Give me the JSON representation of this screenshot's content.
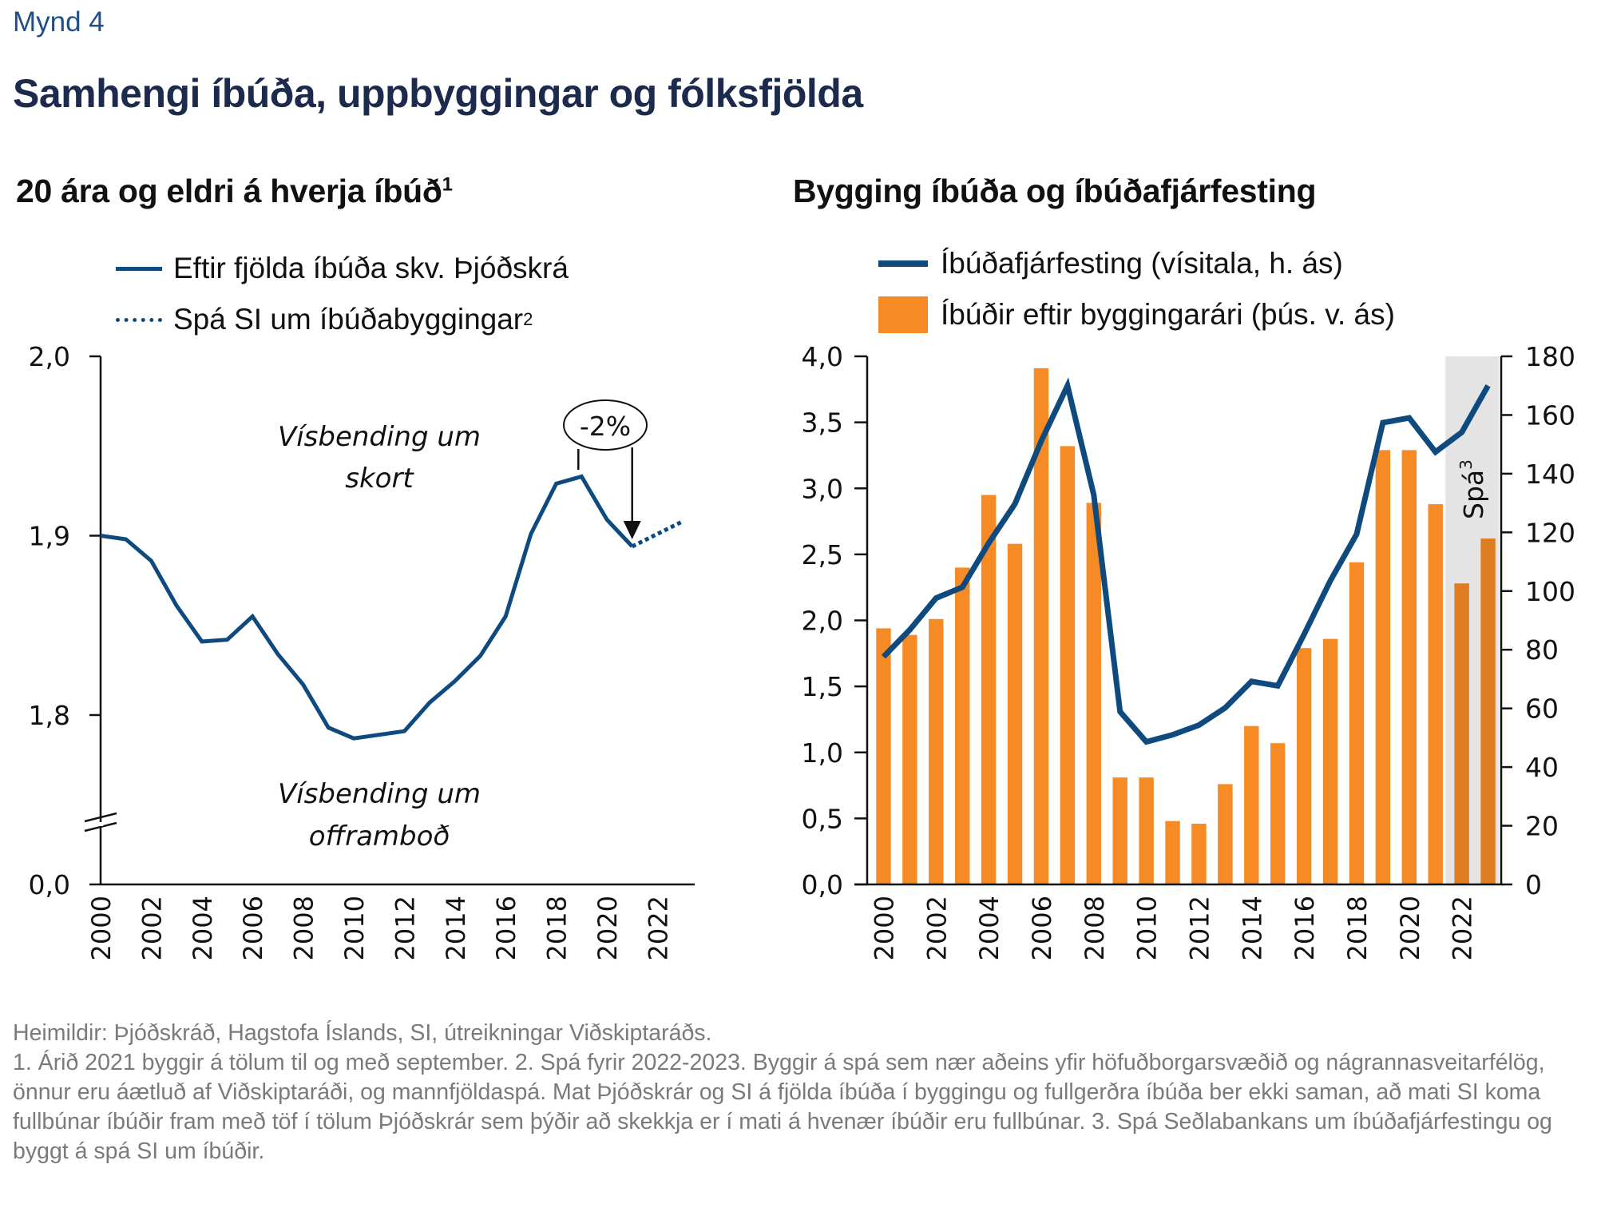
{
  "figure_number": "Mynd 4",
  "title": "Samhengi íbúða, uppbyggingar og fólksfjölda",
  "left_panel": {
    "subtitle": "20 ára og eldri á hverja íbúð",
    "subtitle_sup": "1",
    "legend": [
      {
        "label": "Eftir fjölda íbúða skv. Þjóðskrá",
        "sup": ""
      },
      {
        "label": "Spá SI um íbúðabyggingar",
        "sup": "2"
      }
    ],
    "annotation_top": [
      "Vísbending um",
      "skort"
    ],
    "annotation_bottom": [
      "Vísbending um",
      "offramboð"
    ],
    "callout": "-2%"
  },
  "right_panel": {
    "subtitle": "Bygging íbúða og íbúðafjárfesting",
    "legend": [
      {
        "label": "Íbúðafjárfesting (vísitala, h. ás)"
      },
      {
        "label": "Íbúðir eftir byggingarári (þús. v. ás)"
      }
    ],
    "forecast_label": "Spá",
    "forecast_sup": "3"
  },
  "colors": {
    "line": "#0e4a7e",
    "bar": "#f68b26",
    "bar_forecast": "#e07d22",
    "forecast_shade": "#e4e4e4",
    "figno": "#1e4f8a",
    "title": "#1c2a4d",
    "footer": "#7a7a7a"
  },
  "chart_data": [
    {
      "type": "line",
      "title": "20 ára og eldri á hverja íbúð",
      "xlabel": "",
      "ylabel": "",
      "x_ticks": [
        "2000",
        "2002",
        "2004",
        "2006",
        "2008",
        "2010",
        "2012",
        "2014",
        "2016",
        "2018",
        "2020",
        "2022"
      ],
      "y_ticks": [
        "0,0",
        "1,8",
        "1,9",
        "2,0"
      ],
      "ylim": [
        1.75,
        2.0
      ],
      "y_axis_break": true,
      "grid": false,
      "legend_position": "top-left",
      "series": [
        {
          "name": "Eftir fjölda íbúða skv. Þjóðskrá",
          "style": "solid",
          "x": [
            2000,
            2001,
            2002,
            2003,
            2004,
            2005,
            2006,
            2007,
            2008,
            2009,
            2010,
            2011,
            2012,
            2013,
            2014,
            2015,
            2016,
            2017,
            2018,
            2019,
            2020,
            2021
          ],
          "values": [
            1.9,
            1.898,
            1.886,
            1.861,
            1.841,
            1.842,
            1.855,
            1.834,
            1.817,
            1.793,
            1.787,
            1.789,
            1.791,
            1.807,
            1.819,
            1.833,
            1.855,
            1.901,
            1.929,
            1.933,
            1.909,
            1.894
          ]
        },
        {
          "name": "Spá SI um íbúðabyggingar",
          "style": "dotted",
          "x": [
            2021,
            2023
          ],
          "values": [
            1.894,
            1.908
          ]
        }
      ],
      "annotations": [
        {
          "text": "Vísbending um skort",
          "position": "upper-middle"
        },
        {
          "text": "Vísbending um offramboð",
          "position": "lower-middle"
        },
        {
          "text": "-2%",
          "from_year": 2019,
          "to_year": 2021
        }
      ]
    },
    {
      "type": "bar",
      "title": "Bygging íbúða og íbúðafjárfesting",
      "x_ticks": [
        "2000",
        "2002",
        "2004",
        "2006",
        "2008",
        "2010",
        "2012",
        "2014",
        "2016",
        "2018",
        "2020",
        "2022"
      ],
      "categories": [
        2000,
        2001,
        2002,
        2003,
        2004,
        2005,
        2006,
        2007,
        2008,
        2009,
        2010,
        2011,
        2012,
        2013,
        2014,
        2015,
        2016,
        2017,
        2018,
        2019,
        2020,
        2021,
        2022,
        2023
      ],
      "left_axis": {
        "ticks": [
          "0,0",
          "0,5",
          "1,0",
          "1,5",
          "2,0",
          "2,5",
          "3,0",
          "3,5",
          "4,0"
        ],
        "ylim": [
          0,
          4.0
        ]
      },
      "right_axis": {
        "ticks": [
          "0",
          "20",
          "40",
          "60",
          "80",
          "100",
          "120",
          "140",
          "160",
          "180"
        ],
        "ylim": [
          0,
          180
        ]
      },
      "forecast_years": [
        2022,
        2023
      ],
      "forecast_label": "Spá³",
      "grid": false,
      "legend_position": "top",
      "series": [
        {
          "name": "Íbúðir eftir byggingarári (þús. v. ás)",
          "kind": "bar",
          "axis": "left",
          "values": [
            1.94,
            1.89,
            2.01,
            2.4,
            2.95,
            2.58,
            3.91,
            3.32,
            2.89,
            0.81,
            0.81,
            0.48,
            0.46,
            0.76,
            1.2,
            1.07,
            1.79,
            1.86,
            2.44,
            3.29,
            3.29,
            2.88,
            2.28,
            2.62
          ]
        },
        {
          "name": "Íbúðafjárfesting (vísitala, h. ás)",
          "kind": "line",
          "axis": "right",
          "values": [
            77.6,
            86.8,
            97.6,
            101.3,
            116.3,
            129.7,
            151.1,
            170.0,
            132.8,
            58.9,
            48.6,
            51.0,
            54.3,
            60.2,
            69.2,
            67.7,
            85.2,
            103.5,
            119.4,
            157.4,
            159.0,
            147.4,
            154.1,
            170.0
          ]
        }
      ]
    }
  ],
  "footer": {
    "sources": "Heimildir:  Þjóðskráð, Hagstofa Íslands, SI, útreikningar Viðskiptaráðs.",
    "notes": "1. Árið 2021 byggir á tölum til og með september. 2. Spá fyrir 2022-2023. Byggir á spá sem nær aðeins yfir höfuðborgarsvæðið og nágrannasveitarfélög, önnur eru áætluð af Viðskiptaráði, og mannfjöldaspá. Mat Þjóðskrár og SI á fjölda íbúða í byggingu og fullgerðra íbúða ber ekki saman, að mati SI koma fullbúnar íbúðir fram með töf í tölum Þjóðskrár sem þýðir að skekkja er í mati á hvenær íbúðir eru fullbúnar. 3. Spá Seðlabankans um íbúðafjárfestingu og byggt á spá SI um íbúðir."
  }
}
